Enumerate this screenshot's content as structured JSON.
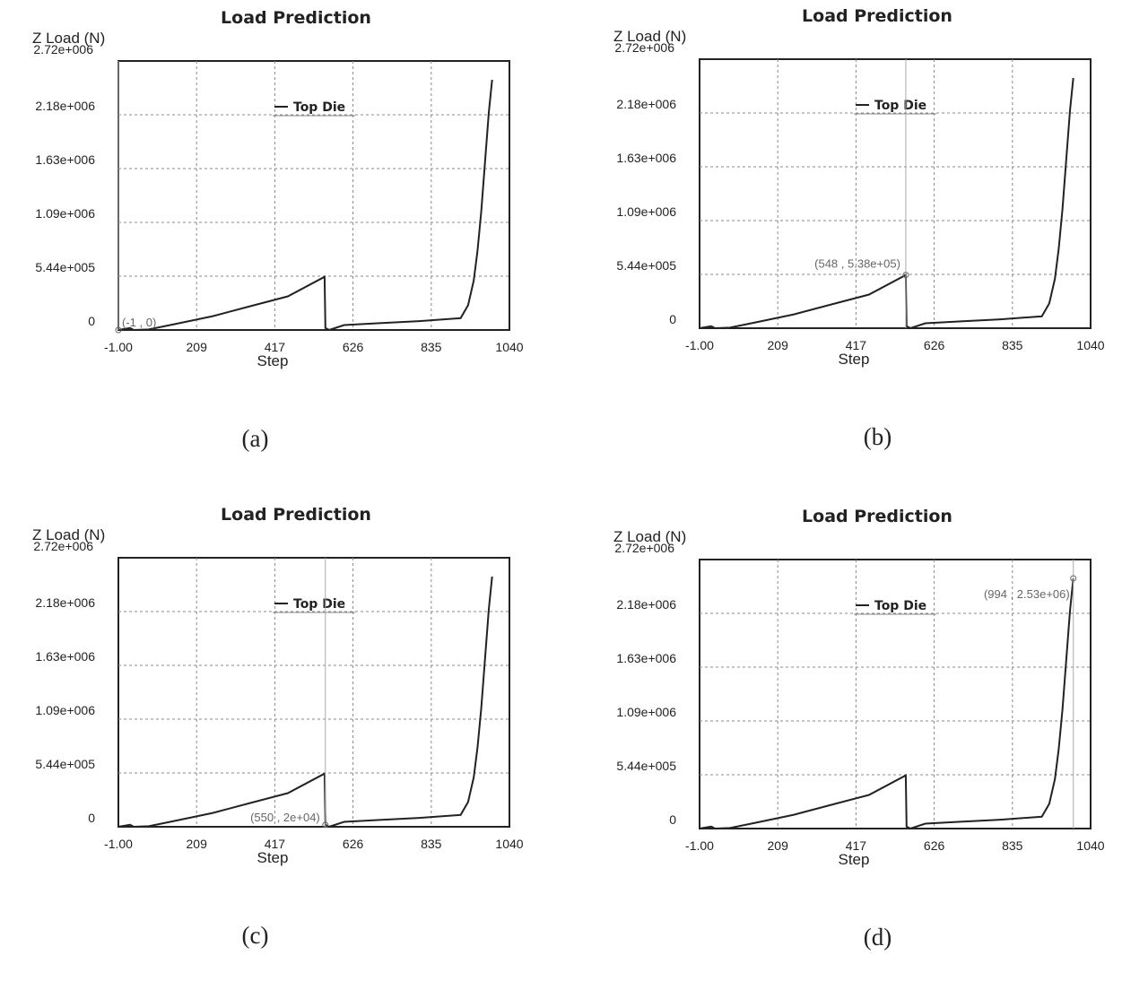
{
  "chart_data": [
    {
      "type": "line",
      "panel_label": "(a)",
      "title": "Load Prediction",
      "ylabel": "Z Load (N)",
      "xlabel": "Step",
      "xlim": [
        -1,
        1040
      ],
      "ylim": [
        0,
        2720000
      ],
      "x_ticks": [
        "-1.00",
        "209",
        "417",
        "626",
        "835",
        "1040"
      ],
      "y_ticks": [
        "0",
        "5.44e+005",
        "1.09e+006",
        "1.63e+006",
        "2.18e+006",
        "2.72e+006"
      ],
      "grid": true,
      "legend_position": "top-center",
      "series": [
        {
          "name": "Top Die",
          "color": "#222222",
          "x": [
            -1,
            30,
            40,
            80,
            150,
            250,
            350,
            450,
            548,
            550,
            560,
            600,
            700,
            800,
            910,
            930,
            945,
            955,
            965,
            975,
            985,
            994
          ],
          "y": [
            0,
            20000,
            0,
            5000,
            60000,
            140000,
            240000,
            340000,
            538000,
            20000,
            0,
            50000,
            70000,
            90000,
            120000,
            250000,
            500000,
            800000,
            1200000,
            1700000,
            2200000,
            2530000
          ]
        }
      ],
      "annotation": {
        "text": "(-1 , 0)",
        "x": -1,
        "y": 0
      }
    },
    {
      "type": "line",
      "panel_label": "(b)",
      "title": "Load Prediction",
      "ylabel": "Z Load (N)",
      "xlabel": "Step",
      "xlim": [
        -1,
        1040
      ],
      "ylim": [
        0,
        2720000
      ],
      "x_ticks": [
        "-1.00",
        "209",
        "417",
        "626",
        "835",
        "1040"
      ],
      "y_ticks": [
        "0",
        "5.44e+005",
        "1.09e+006",
        "1.63e+006",
        "2.18e+006",
        "2.72e+006"
      ],
      "grid": true,
      "legend_position": "top-center",
      "series": [
        {
          "name": "Top Die",
          "color": "#222222",
          "x": [
            -1,
            30,
            40,
            80,
            150,
            250,
            350,
            450,
            548,
            550,
            560,
            600,
            700,
            800,
            910,
            930,
            945,
            955,
            965,
            975,
            985,
            994
          ],
          "y": [
            0,
            20000,
            0,
            5000,
            60000,
            140000,
            240000,
            340000,
            538000,
            20000,
            0,
            50000,
            70000,
            90000,
            120000,
            250000,
            500000,
            800000,
            1200000,
            1700000,
            2200000,
            2530000
          ]
        }
      ],
      "annotation": {
        "text": "(548 , 5.38e+05)",
        "x": 548,
        "y": 538000
      }
    },
    {
      "type": "line",
      "panel_label": "(c)",
      "title": "Load Prediction",
      "ylabel": "Z Load (N)",
      "xlabel": "Step",
      "xlim": [
        -1,
        1040
      ],
      "ylim": [
        0,
        2720000
      ],
      "x_ticks": [
        "-1.00",
        "209",
        "417",
        "626",
        "835",
        "1040"
      ],
      "y_ticks": [
        "0",
        "5.44e+005",
        "1.09e+006",
        "1.63e+006",
        "2.18e+006",
        "2.72e+006"
      ],
      "grid": true,
      "legend_position": "top-center",
      "series": [
        {
          "name": "Top Die",
          "color": "#222222",
          "x": [
            -1,
            30,
            40,
            80,
            150,
            250,
            350,
            450,
            548,
            550,
            560,
            600,
            700,
            800,
            910,
            930,
            945,
            955,
            965,
            975,
            985,
            994
          ],
          "y": [
            0,
            20000,
            0,
            5000,
            60000,
            140000,
            240000,
            340000,
            538000,
            20000,
            0,
            50000,
            70000,
            90000,
            120000,
            250000,
            500000,
            800000,
            1200000,
            1700000,
            2200000,
            2530000
          ]
        }
      ],
      "annotation": {
        "text": "(550 , 2e+04)",
        "x": 550,
        "y": 20000
      }
    },
    {
      "type": "line",
      "panel_label": "(d)",
      "title": "Load Prediction",
      "ylabel": "Z Load (N)",
      "xlabel": "Step",
      "xlim": [
        -1,
        1040
      ],
      "ylim": [
        0,
        2720000
      ],
      "x_ticks": [
        "-1.00",
        "209",
        "417",
        "626",
        "835",
        "1040"
      ],
      "y_ticks": [
        "0",
        "5.44e+005",
        "1.09e+006",
        "1.63e+006",
        "2.18e+006",
        "2.72e+006"
      ],
      "grid": true,
      "legend_position": "top-center",
      "series": [
        {
          "name": "Top Die",
          "color": "#222222",
          "x": [
            -1,
            30,
            40,
            80,
            150,
            250,
            350,
            450,
            548,
            550,
            560,
            600,
            700,
            800,
            910,
            930,
            945,
            955,
            965,
            975,
            985,
            994
          ],
          "y": [
            0,
            20000,
            0,
            5000,
            60000,
            140000,
            240000,
            340000,
            538000,
            20000,
            0,
            50000,
            70000,
            90000,
            120000,
            250000,
            500000,
            800000,
            1200000,
            1700000,
            2200000,
            2530000
          ]
        }
      ],
      "annotation": {
        "text": "(994 , 2.53e+06)",
        "x": 994,
        "y": 2530000
      }
    }
  ]
}
